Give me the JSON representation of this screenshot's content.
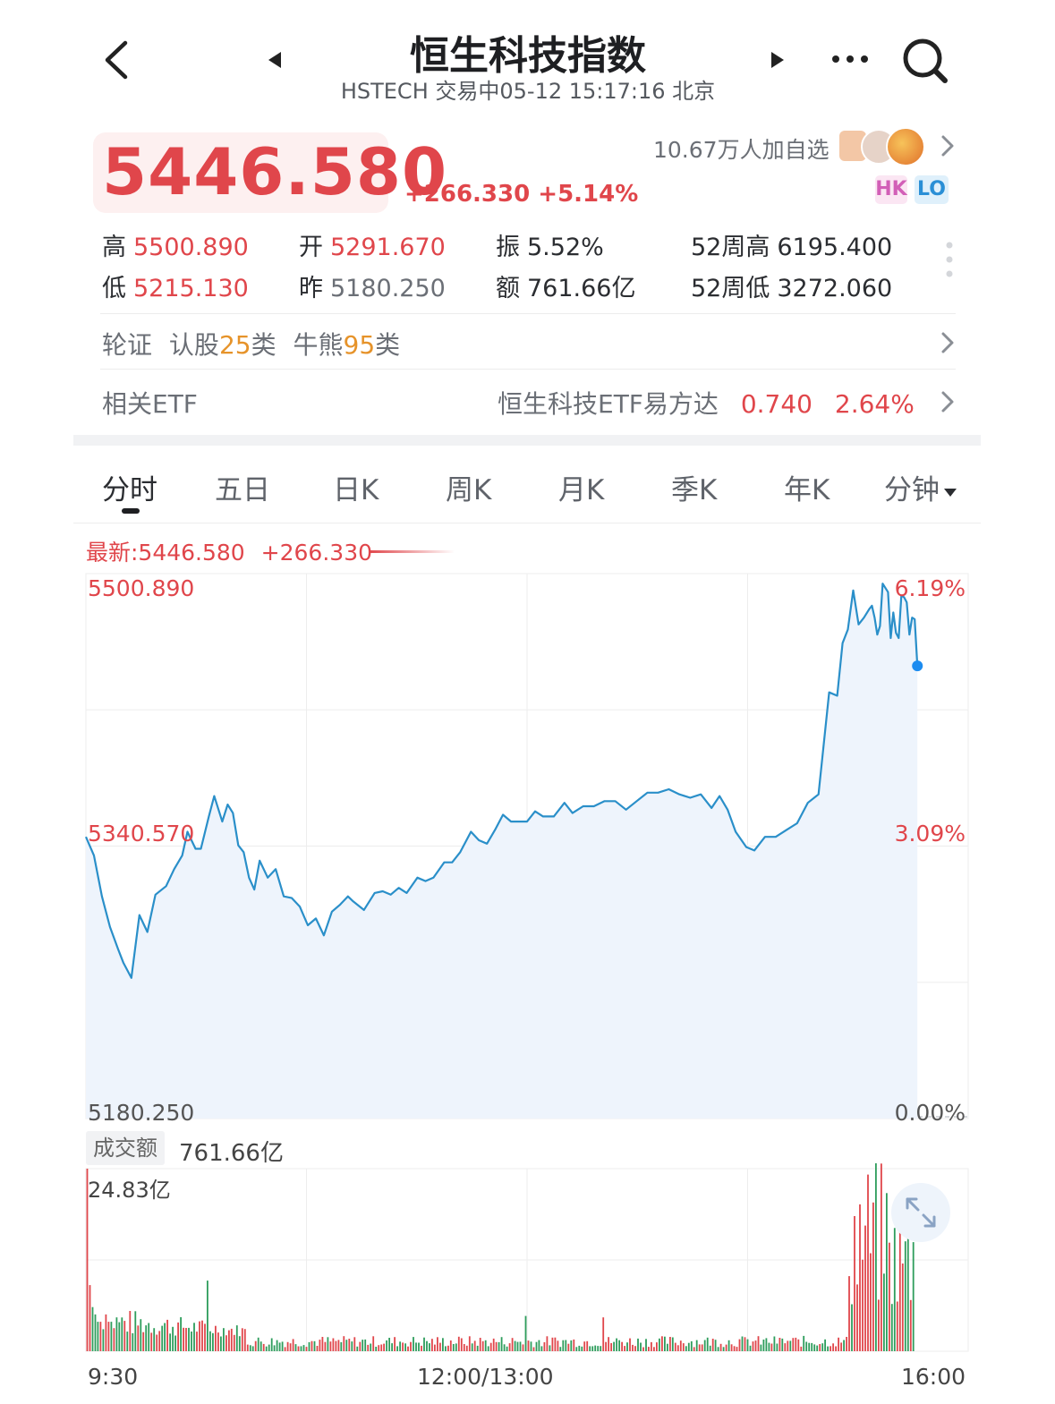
{
  "header": {
    "title": "恒生科技指数",
    "subtitle": "HSTECH 交易中05-12 15:17:16 北京",
    "back_icon": "chevron-left-icon",
    "prev_icon": "triangle-left-icon",
    "next_icon": "triangle-right-icon",
    "more_icon": "more-horizontal-icon",
    "search_icon": "search-icon"
  },
  "quote": {
    "price": "5446.580",
    "change": "+266.330",
    "change_pct": "+5.14%",
    "watchers": "10.67万人加自选",
    "badge_hk": "HK",
    "badge_lo": "LO",
    "accent": "#e0464b"
  },
  "stats": {
    "high_label": "高",
    "high": "5500.890",
    "open_label": "开",
    "open": "5291.670",
    "amp_label": "振",
    "amp": "5.52%",
    "w52h_label": "52周高",
    "w52h": "6195.400",
    "low_label": "低",
    "low": "5215.130",
    "prev_label": "昨",
    "prev": "5180.250",
    "amount_label": "额",
    "amount": "761.66亿",
    "w52l_label": "52周低",
    "w52l": "3272.060"
  },
  "warrants": {
    "label": "轮证",
    "call_pre": "认股",
    "call_count": "25",
    "call_post": "类",
    "cbbc_pre": "牛熊",
    "cbbc_count": "95",
    "cbbc_post": "类"
  },
  "etf": {
    "label": "相关ETF",
    "name": "恒生科技ETF易方达",
    "price": "0.740",
    "pct": "2.64%"
  },
  "tabs": [
    "分时",
    "五日",
    "日K",
    "周K",
    "月K",
    "季K",
    "年K",
    "分钟"
  ],
  "active_tab": 0,
  "chart_info": {
    "latest": "最新:5446.580",
    "change": "+266.330"
  },
  "chart_data": {
    "type": "line",
    "y_left_ticks": [
      "5500.890",
      "5340.570",
      "5180.250"
    ],
    "y_right_ticks": [
      "6.19%",
      "3.09%",
      "0.00%"
    ],
    "x_ticks": [
      "9:30",
      "12:00/13:00",
      "16:00"
    ],
    "ylim": [
      5180.25,
      5500.89
    ],
    "x_range": [
      0,
      330
    ],
    "series": [
      {
        "x": [
          0,
          3,
          6,
          9,
          12,
          14,
          17,
          20,
          23,
          26,
          30,
          33,
          36,
          38,
          41,
          43,
          46,
          48,
          51,
          53,
          55,
          57,
          59,
          61,
          63,
          65,
          68,
          71,
          74,
          77,
          80,
          83,
          86,
          89,
          92,
          95,
          98,
          100,
          104,
          108,
          111,
          114,
          117,
          120,
          124,
          127,
          130,
          134,
          137,
          140,
          144,
          147,
          150,
          153,
          156,
          159,
          162,
          165,
          168,
          171,
          175,
          179,
          182,
          186,
          190,
          194,
          198,
          202,
          206,
          210,
          214,
          218,
          222,
          226,
          230,
          234,
          237,
          240,
          243,
          247,
          250,
          254,
          258,
          262,
          266,
          270,
          274,
          278,
          281,
          283,
          285,
          287,
          289,
          291,
          293,
          294,
          295,
          296,
          297,
          298,
          300,
          301,
          302,
          303,
          304,
          305,
          306,
          307,
          308,
          309,
          310,
          311
        ],
        "y": [
          5346,
          5335,
          5311,
          5293,
          5280,
          5272,
          5263,
          5300,
          5290,
          5312,
          5317,
          5327,
          5335,
          5349,
          5339,
          5339,
          5358,
          5370,
          5355,
          5365,
          5360,
          5341,
          5337,
          5322,
          5315,
          5332,
          5322,
          5327,
          5311,
          5310,
          5305,
          5294,
          5298,
          5288,
          5302,
          5306,
          5311,
          5308,
          5303,
          5313,
          5314,
          5312,
          5316,
          5313,
          5322,
          5320,
          5322,
          5331,
          5331,
          5337,
          5349,
          5344,
          5342,
          5350,
          5359,
          5355,
          5355,
          5355,
          5361,
          5358,
          5358,
          5366,
          5360,
          5364,
          5364,
          5367,
          5367,
          5362,
          5367,
          5372,
          5372,
          5374,
          5371,
          5369,
          5371,
          5363,
          5370,
          5362,
          5349,
          5340,
          5338,
          5346,
          5346,
          5350,
          5354,
          5366,
          5371,
          5431,
          5429,
          5460,
          5468,
          5491,
          5471,
          5475,
          5480,
          5482,
          5475,
          5465,
          5470,
          5495,
          5490,
          5463,
          5478,
          5466,
          5463,
          5488,
          5487,
          5484,
          5465,
          5475,
          5474,
          5446.58
        ]
      }
    ],
    "volume": {
      "label": "成交额",
      "total": "761.66亿",
      "max_label": "24.83亿",
      "max": 24.83,
      "values_start": [
        24.83,
        9,
        6,
        5,
        4,
        4,
        3,
        5,
        4,
        4
      ],
      "base_level": 1.1,
      "late_peak": 21
    }
  },
  "expand_icon": "expand-arrows-icon"
}
